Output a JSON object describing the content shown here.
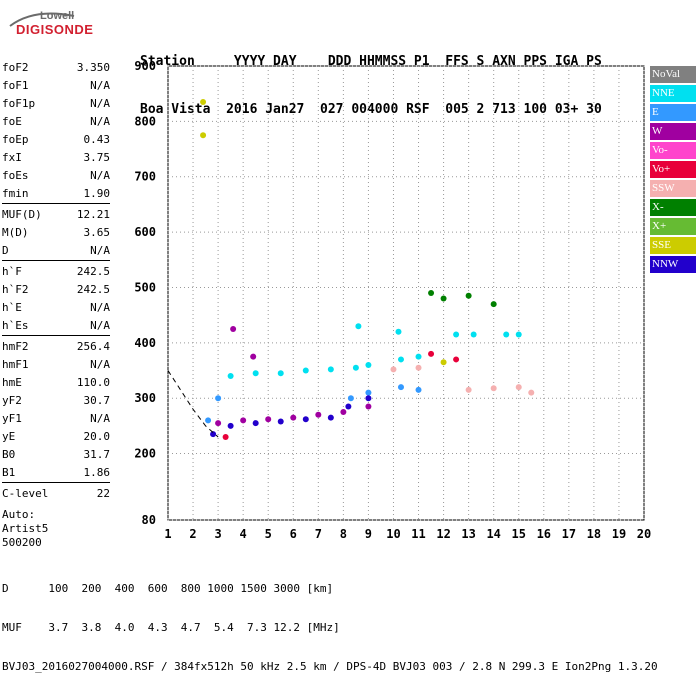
{
  "logo": {
    "top": "Lowell",
    "bottom": "DIGISONDE"
  },
  "header": {
    "line1": "Station     YYYY DAY    DDD HHMMSS P1  FFS S AXN PPS IGA PS",
    "line2": "Boa Vista  2016 Jan27  027 004000 RSF  005 2 713 100 03+ 30"
  },
  "params": [
    {
      "label": "foF2",
      "value": "3.350"
    },
    {
      "label": "foF1",
      "value": "N/A"
    },
    {
      "label": "foF1p",
      "value": "N/A"
    },
    {
      "label": "foE",
      "value": "N/A"
    },
    {
      "label": "foEp",
      "value": "0.43"
    },
    {
      "label": "fxI",
      "value": "3.75"
    },
    {
      "label": "foEs",
      "value": "N/A"
    },
    {
      "label": "fmin",
      "value": "1.90"
    },
    {
      "label": "MUF(D)",
      "value": "12.21"
    },
    {
      "label": "M(D)",
      "value": "3.65"
    },
    {
      "label": "D",
      "value": "N/A"
    },
    {
      "label": "h`F",
      "value": "242.5"
    },
    {
      "label": "h`F2",
      "value": "242.5"
    },
    {
      "label": "h`E",
      "value": "N/A"
    },
    {
      "label": "h`Es",
      "value": "N/A"
    },
    {
      "label": "hmF2",
      "value": "256.4"
    },
    {
      "label": "hmF1",
      "value": "N/A"
    },
    {
      "label": "hmE",
      "value": "110.0"
    },
    {
      "label": "yF2",
      "value": "30.7"
    },
    {
      "label": "yF1",
      "value": "N/A"
    },
    {
      "label": "yE",
      "value": "20.0"
    },
    {
      "label": "B0",
      "value": "31.7"
    },
    {
      "label": "B1",
      "value": "1.86"
    },
    {
      "label": "C-level",
      "value": "22"
    }
  ],
  "auto": {
    "line1": "Auto:",
    "line2": "Artist5",
    "line3": "500200"
  },
  "legend": [
    {
      "label": "NoVal",
      "color": "#808080"
    },
    {
      "label": "NNE",
      "color": "#00e0f0"
    },
    {
      "label": "E",
      "color": "#3399ff"
    },
    {
      "label": "W",
      "color": "#a000a0"
    },
    {
      "label": "Vo-",
      "color": "#ff44cc"
    },
    {
      "label": "Vo+",
      "color": "#e8003a"
    },
    {
      "label": "SSW",
      "color": "#f5b0b0"
    },
    {
      "label": "X-",
      "color": "#008000"
    },
    {
      "label": "X+",
      "color": "#66bb33"
    },
    {
      "label": "SSE",
      "color": "#cccc00"
    },
    {
      "label": "NNW",
      "color": "#2200cc"
    }
  ],
  "chart_data": {
    "type": "scatter",
    "xlim": [
      1,
      20
    ],
    "ylim": [
      80,
      900
    ],
    "x_ticks": [
      "1",
      "2",
      "3",
      "4",
      "5",
      "6",
      "7",
      "8",
      "9",
      "10",
      "11",
      "12",
      "13",
      "14",
      "15",
      "16",
      "17",
      "18",
      "19",
      "20"
    ],
    "y_ticks": [
      "80",
      "200",
      "300",
      "400",
      "500",
      "600",
      "700",
      "800",
      "900"
    ],
    "series": [
      {
        "name": "NNE",
        "values": [
          [
            3.5,
            340
          ],
          [
            4.5,
            345
          ],
          [
            5.5,
            345
          ],
          [
            6.5,
            350
          ],
          [
            7.5,
            352
          ],
          [
            8.5,
            355
          ],
          [
            9.0,
            360
          ],
          [
            10.3,
            370
          ],
          [
            11.0,
            375
          ],
          [
            12.5,
            415
          ],
          [
            13.2,
            415
          ],
          [
            14.5,
            415
          ],
          [
            15.0,
            415
          ],
          [
            8.6,
            430
          ],
          [
            10.2,
            420
          ]
        ]
      },
      {
        "name": "E",
        "values": [
          [
            8.3,
            300
          ],
          [
            9.0,
            310
          ],
          [
            10.3,
            320
          ],
          [
            11.0,
            315
          ],
          [
            3.0,
            300
          ],
          [
            2.6,
            260
          ]
        ]
      },
      {
        "name": "NNW",
        "values": [
          [
            3.5,
            250
          ],
          [
            4.5,
            255
          ],
          [
            5.5,
            258
          ],
          [
            6.5,
            262
          ],
          [
            7.5,
            265
          ],
          [
            8.2,
            285
          ],
          [
            9.0,
            300
          ],
          [
            2.8,
            235
          ]
        ]
      },
      {
        "name": "W",
        "values": [
          [
            3.0,
            255
          ],
          [
            4.0,
            260
          ],
          [
            5.0,
            262
          ],
          [
            6.0,
            265
          ],
          [
            7.0,
            270
          ],
          [
            8.0,
            275
          ],
          [
            9.0,
            285
          ],
          [
            3.6,
            425
          ],
          [
            4.4,
            375
          ]
        ]
      },
      {
        "name": "SSW",
        "values": [
          [
            13.0,
            315
          ],
          [
            14.0,
            318
          ],
          [
            15.0,
            320
          ],
          [
            15.5,
            310
          ],
          [
            11.0,
            355
          ],
          [
            10.0,
            352
          ]
        ]
      },
      {
        "name": "X-",
        "values": [
          [
            12.0,
            480
          ],
          [
            13.0,
            485
          ],
          [
            14.0,
            470
          ],
          [
            11.5,
            490
          ]
        ]
      },
      {
        "name": "Vo+",
        "values": [
          [
            11.5,
            380
          ],
          [
            12.5,
            370
          ],
          [
            3.3,
            230
          ]
        ]
      },
      {
        "name": "SSE",
        "values": [
          [
            2.4,
            835
          ],
          [
            2.4,
            775
          ],
          [
            12.0,
            365
          ]
        ]
      }
    ],
    "trace_x": [
      1.0,
      2.0,
      2.5,
      3.0
    ],
    "trace_y": [
      350,
      280,
      250,
      230
    ]
  },
  "footer": {
    "line1": "D      100  200  400  600  800 1000 1500 3000 [km]",
    "line2": "MUF    3.7  3.8  4.0  4.3  4.7  5.4  7.3 12.2 [MHz]",
    "line3": "BVJ03_2016027004000.RSF / 384fx512h 50 kHz 2.5 km / DPS-4D BVJ03 003 / 2.8 N 299.3 E Ion2Png 1.3.20"
  }
}
